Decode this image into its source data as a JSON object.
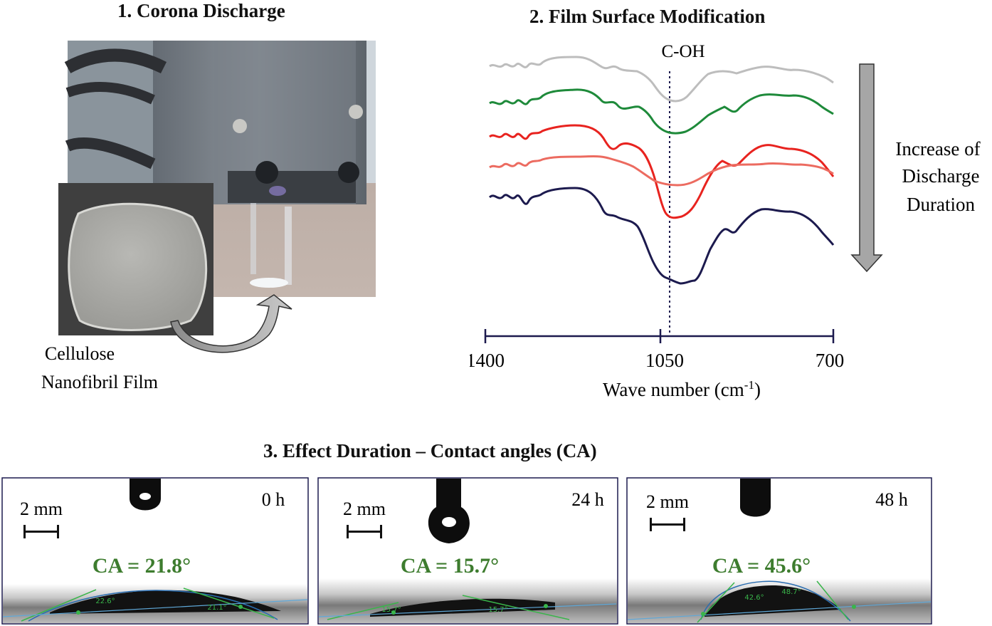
{
  "panel1": {
    "title": "1. Corona Discharge",
    "film_label_line1": "Cellulose",
    "film_label_line2": "Nanofibril Film"
  },
  "panel2": {
    "title": "2. Film Surface Modification",
    "peak_label": "C-OH",
    "arrow_label_line1": "Increase of",
    "arrow_label_line2": "Discharge",
    "arrow_label_line3": "Duration",
    "x_ticks": [
      "1400",
      "1050",
      "700"
    ],
    "x_axis_label": "Wave number (cm",
    "x_axis_label_sup": "-1",
    "x_axis_label_end": ")",
    "series_colors": [
      "#bdbdbd",
      "#1e8a3a",
      "#e8231f",
      "#ec6b60",
      "#1c1a4e"
    ]
  },
  "panel3": {
    "title": "3. Effect Duration – Contact angles (CA)",
    "frames": [
      {
        "scale": "2 mm",
        "time": "0 h",
        "ca": "CA = 21.8°",
        "left_angle": "22.6°",
        "right_angle": "21.1°"
      },
      {
        "scale": "2 mm",
        "time": "24 h",
        "ca": "CA = 15.7°",
        "left_angle": "15.7°",
        "right_angle": "15.7°"
      },
      {
        "scale": "2 mm",
        "time": "48 h",
        "ca": "CA = 45.6°",
        "left_angle": "42.6°",
        "right_angle": "48.7°"
      }
    ]
  }
}
